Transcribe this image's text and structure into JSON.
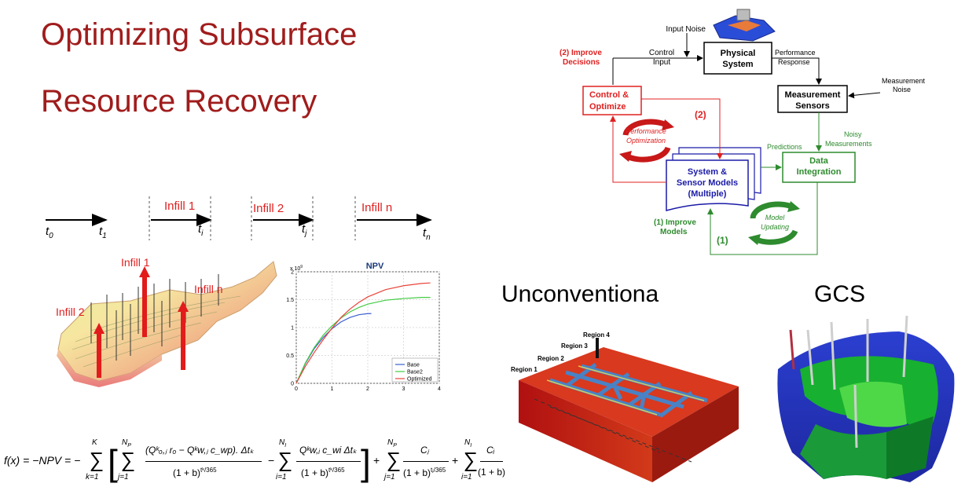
{
  "title": {
    "line1": "Optimizing Subsurface",
    "line2": "Resource Recovery"
  },
  "timeline": {
    "t0": "t",
    "t0_sub": "0",
    "t1": "t",
    "t1_sub": "1",
    "ti": "t",
    "ti_sub": "i",
    "tj": "t",
    "tj_sub": "j",
    "tn": "t",
    "tn_sub": "n",
    "infill1": "Infill 1",
    "infill2": "Infill 2",
    "infilln": "Infill n"
  },
  "reservoir": {
    "infill1": "Infill 1",
    "infill2": "Infill 2",
    "infilln": "Infill n"
  },
  "chart_data": {
    "type": "line",
    "title": "NPV",
    "xlim": [
      0,
      4
    ],
    "ylim": [
      0,
      2
    ],
    "y_exponent_label": "x 10",
    "y_exponent_power": "9",
    "xticks": [
      "0",
      "1",
      "2",
      "3",
      "4"
    ],
    "yticks": [
      "0",
      "0.5",
      "1",
      "1.5",
      "2"
    ],
    "legend_position": "bottom-right",
    "series": [
      {
        "name": "Base",
        "color": "#3a5fcd",
        "x": [
          0,
          0.25,
          0.5,
          0.75,
          1.0,
          1.25,
          1.5,
          1.75,
          2.0,
          2.1
        ],
        "y": [
          0,
          0.35,
          0.62,
          0.82,
          0.98,
          1.1,
          1.18,
          1.23,
          1.25,
          1.25
        ]
      },
      {
        "name": "Base2",
        "color": "#44cc44",
        "x": [
          0,
          0.25,
          0.5,
          0.75,
          1.0,
          1.25,
          1.5,
          1.75,
          2.0,
          2.5,
          3.0,
          3.5,
          3.75
        ],
        "y": [
          0,
          0.36,
          0.64,
          0.86,
          1.03,
          1.17,
          1.28,
          1.36,
          1.42,
          1.49,
          1.52,
          1.54,
          1.54
        ]
      },
      {
        "name": "Optimized",
        "color": "#e8443a",
        "x": [
          0,
          0.25,
          0.5,
          0.75,
          1.0,
          1.25,
          1.5,
          1.75,
          2.0,
          2.5,
          3.0,
          3.5,
          3.75
        ],
        "y": [
          0,
          0.3,
          0.55,
          0.78,
          0.99,
          1.18,
          1.33,
          1.45,
          1.55,
          1.68,
          1.75,
          1.79,
          1.8
        ]
      }
    ]
  },
  "formula": {
    "lhs": "f(x) = −NPV = −",
    "sum_k_top": "K",
    "sum_k_bot": "k=1",
    "sum_j_top": "N",
    "sum_j_top_sub": "P",
    "sum_j_bot": "j=1",
    "term1_num": "(Q",
    "term1_num_full": "(Qᵏₒ,ⱼ rₒ − Qᵏw,ⱼ c_wp). Δtₖ",
    "term1_den": "(1 + b)",
    "term1_den_exp": "tᵏ/365",
    "minus": "−",
    "sum_i_top": "N",
    "sum_i_top_sub": "I",
    "sum_i_bot": "i=1",
    "term2_num_full": "Qᵏw,ᵢ c_wi Δtₖ",
    "term2_den": "(1 + b)",
    "term2_den_exp": "tᵏ/365",
    "plus1": "+",
    "sum_j2_top": "N",
    "sum_j2_top_sub": "P",
    "sum_j2_bot": "j=1",
    "term3_num": "Cⱼ",
    "term3_den": "(1 + b)",
    "term3_den_exp": "tⱼ/365",
    "plus2": "+",
    "sum_i2_top": "N",
    "sum_i2_top_sub": "I",
    "sum_i2_bot": "i=1",
    "term4_num": "Cᵢ",
    "term4_den": "(1 + b)"
  },
  "diagram": {
    "input_noise": "Input Noise",
    "physical_system": [
      "Physical",
      "System"
    ],
    "control_input": [
      "Control",
      "Input"
    ],
    "performance_response": [
      "Performance",
      "Response"
    ],
    "improve_decisions": [
      "(2) Improve",
      "Decisions"
    ],
    "control_optimize": [
      "Control &",
      "Optimize"
    ],
    "measurement_sensors": [
      "Measurement",
      "Sensors"
    ],
    "measurement_noise": [
      "Measurement",
      "Noise"
    ],
    "label_2": "(2)",
    "performance_optimization": [
      "Performance",
      "Optimization"
    ],
    "predictions": "Predictions",
    "noisy_measurements": [
      "Noisy",
      "Measurements"
    ],
    "system_sensor_models": [
      "System &",
      "Sensor Models",
      "(Multiple)"
    ],
    "data_integration": [
      "Data",
      "Integration"
    ],
    "improve_models": [
      "(1) Improve",
      "Models"
    ],
    "model_updating": [
      "Model",
      "Updating"
    ],
    "label_1": "(1)"
  },
  "unconventional": {
    "heading": "Unconventiona",
    "regions": [
      "Region 1",
      "Region 2",
      "Region 3",
      "Region 4"
    ]
  },
  "gcs": {
    "heading": "GCS"
  },
  "colors": {
    "title": "#a01c1c",
    "red_arrow": "#e21b1b",
    "diagram_red": "#e02020",
    "diagram_green": "#2e8b2e",
    "diagram_blue": "#1a1aa8"
  }
}
